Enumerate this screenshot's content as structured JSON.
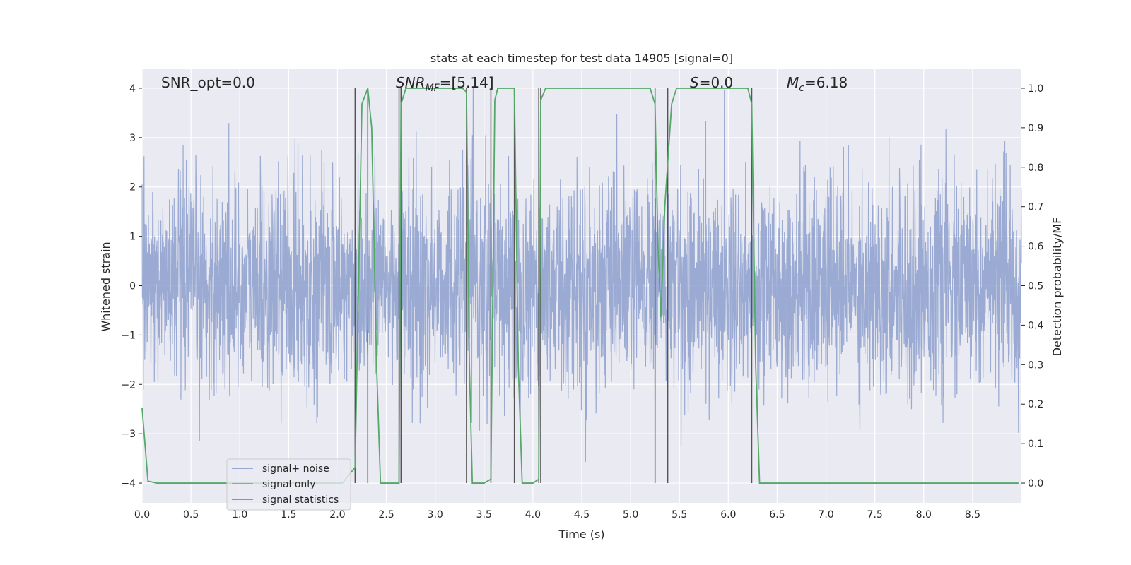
{
  "chart_data": {
    "type": "line",
    "title": "stats at each timestep for test data 14905 [signal=0]",
    "xlabel": "Time (s)",
    "ylabel": "Whitened strain",
    "ylabel_right": "Detection probability/MF",
    "xlim": [
      0,
      9
    ],
    "ylim": [
      -4.4,
      4.4
    ],
    "ylim_right": [
      -0.05,
      1.05
    ],
    "x_ticks": [
      "0.0",
      "0.5",
      "1.0",
      "1.5",
      "2.0",
      "2.5",
      "3.0",
      "3.5",
      "4.0",
      "4.5",
      "5.0",
      "5.5",
      "6.0",
      "6.5",
      "7.0",
      "7.5",
      "8.0",
      "8.5"
    ],
    "y_ticks": [
      "4",
      "3",
      "2",
      "1",
      "0",
      "−1",
      "−2",
      "−3",
      "−4"
    ],
    "y_ticks_right": [
      "1.0",
      "0.9",
      "0.8",
      "0.7",
      "0.6",
      "0.5",
      "0.4",
      "0.3",
      "0.2",
      "0.1",
      "0.0"
    ],
    "grid": true,
    "legend_placement": "lower-left",
    "annotations": {
      "snr_opt": "SNR_opt=0.0",
      "snr_mf_main": "SNR",
      "snr_mf_sub": "MF",
      "snr_mf_value": "=[5.14]",
      "s_main": "S",
      "s_value": "=0.0",
      "mc_main": "M",
      "mc_sub": "c",
      "mc_value": "=6.18"
    },
    "vertical_lines": [
      2.18,
      2.31,
      2.63,
      2.65,
      3.32,
      3.57,
      3.81,
      4.06,
      4.08,
      5.25,
      5.38,
      6.24
    ],
    "series": [
      {
        "name": "signal+ noise",
        "color": "#8c9fcc",
        "description_range": [
          -4.0,
          4.0
        ]
      },
      {
        "name": "signal only",
        "color": "#dd8452",
        "values": []
      },
      {
        "name": "signal statistics",
        "color": "#55a868",
        "points": [
          [
            0.0,
            0.19
          ],
          [
            0.06,
            0.005
          ],
          [
            0.15,
            0.0
          ],
          [
            2.05,
            0.0
          ],
          [
            2.18,
            0.04
          ],
          [
            2.25,
            0.96
          ],
          [
            2.31,
            1.0
          ],
          [
            2.35,
            0.9
          ],
          [
            2.4,
            0.3
          ],
          [
            2.44,
            0.0
          ],
          [
            2.63,
            0.0
          ],
          [
            2.65,
            0.96
          ],
          [
            2.7,
            1.0
          ],
          [
            3.28,
            1.0
          ],
          [
            3.32,
            0.99
          ],
          [
            3.35,
            0.3
          ],
          [
            3.38,
            0.0
          ],
          [
            3.5,
            0.0
          ],
          [
            3.57,
            0.01
          ],
          [
            3.61,
            0.97
          ],
          [
            3.64,
            1.0
          ],
          [
            3.81,
            1.0
          ],
          [
            3.85,
            0.3
          ],
          [
            3.89,
            0.0
          ],
          [
            4.0,
            0.0
          ],
          [
            4.06,
            0.01
          ],
          [
            4.08,
            0.97
          ],
          [
            4.13,
            1.0
          ],
          [
            5.2,
            1.0
          ],
          [
            5.25,
            0.96
          ],
          [
            5.28,
            0.6
          ],
          [
            5.31,
            0.42
          ],
          [
            5.35,
            0.7
          ],
          [
            5.42,
            0.96
          ],
          [
            5.47,
            1.0
          ],
          [
            6.2,
            1.0
          ],
          [
            6.24,
            0.96
          ],
          [
            6.28,
            0.3
          ],
          [
            6.32,
            0.0
          ],
          [
            8.97,
            0.0
          ]
        ]
      }
    ]
  }
}
